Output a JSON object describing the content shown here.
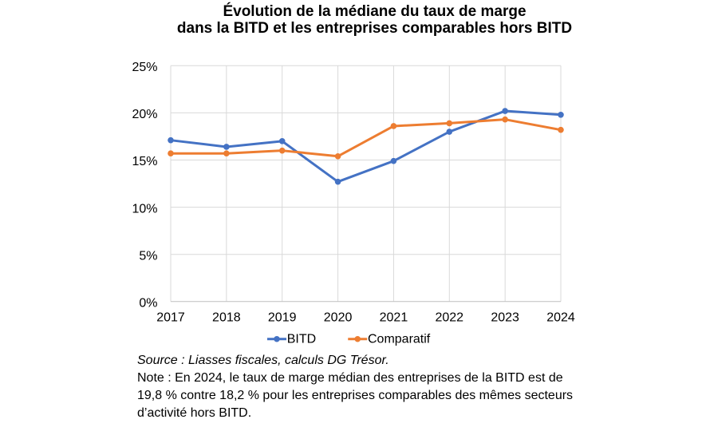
{
  "chart_data": {
    "type": "line",
    "title": "Évolution de la médiane du taux de marge dans la BITD et les entreprises comparables hors BITD",
    "title_lines": [
      "Évolution de la médiane du taux de marge",
      "dans la BITD et les entreprises comparables hors BITD"
    ],
    "categories": [
      "2017",
      "2018",
      "2019",
      "2020",
      "2021",
      "2022",
      "2023",
      "2024"
    ],
    "series": [
      {
        "name": "BITD",
        "color": "#4472C4",
        "values": [
          17.1,
          16.4,
          17.0,
          12.7,
          14.9,
          18.0,
          20.2,
          19.8
        ]
      },
      {
        "name": "Comparatif",
        "color": "#ED7D31",
        "values": [
          15.7,
          15.7,
          16.0,
          15.4,
          18.6,
          18.9,
          19.3,
          18.2
        ]
      }
    ],
    "xlabel": "",
    "ylabel": "",
    "ylim": [
      0,
      25
    ],
    "ytick_step": 5,
    "ytick_labels": [
      "0%",
      "5%",
      "10%",
      "15%",
      "20%",
      "25%"
    ],
    "grid": true,
    "legend_position": "bottom",
    "grid_color": "#D9D9D9",
    "axis_color": "#BFBFBF",
    "text_color": "#000000",
    "background_color": "#FFFFFF"
  },
  "notes": {
    "source": "Source : Liasses fiscales, calculs DG Trésor.",
    "note_lines": [
      "Note : En 2024, le taux de marge médian des entreprises de la BITD est de",
      "19,8 % contre 18,2 % pour les entreprises comparables des mêmes secteurs",
      "d’activité hors BITD."
    ]
  }
}
